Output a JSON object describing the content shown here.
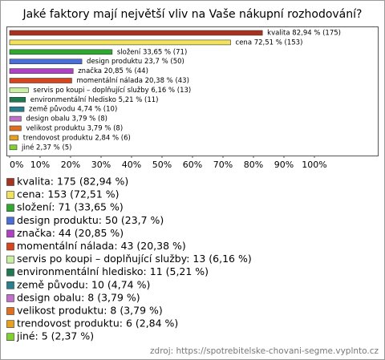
{
  "chart_data": {
    "type": "bar",
    "orientation": "horizontal",
    "title": "Jaké faktory mají největší vliv na Vaše nákupní rozhodování?",
    "categories": [
      "kvalita",
      "cena",
      "složení",
      "design produktu",
      "značka",
      "momentální nálada",
      "servis po koupi – doplňující služby",
      "environmentální hledisko",
      "země původu",
      "design obalu",
      "velikost produktu",
      "trendovost produktu",
      "jiné"
    ],
    "values": [
      82.94,
      72.51,
      33.65,
      23.7,
      20.85,
      20.38,
      6.16,
      5.21,
      4.74,
      3.79,
      3.79,
      2.84,
      2.37
    ],
    "value_labels": [
      "kvalita 82,94 % (175)",
      "cena 72,51 % (153)",
      "složení 33,65 % (71)",
      "design produktu 23,7 % (50)",
      "značka 20,85 % (44)",
      "momentální nálada 20,38 % (43)",
      "servis po koupi – doplňující služby 6,16 % (13)",
      "environmentální hledisko 5,21 % (11)",
      "země původu 4,74 % (10)",
      "design obalu 3,79 % (8)",
      "velikost produktu 3,79 % (8)",
      "trendovost produktu 2,84 % (6)",
      "jiné 2,37 % (5)"
    ],
    "legend": [
      "kvalita: 175 (82,94 %)",
      "cena: 153 (72,51 %)",
      "složení: 71 (33,65 %)",
      "design produktu: 50 (23,7 %)",
      "značka: 44 (20,85 %)",
      "momentální nálada: 43 (20,38 %)",
      "servis po koupi – doplňující služby: 13 (6,16 %)",
      "environmentální hledisko: 11 (5,21 %)",
      "země původu: 10 (4,74 %)",
      "design obalu: 8 (3,79 %)",
      "velikost produktu: 8 (3,79 %)",
      "trendovost produktu: 6 (2,84 %)",
      "jiné: 5 (2,37 %)"
    ],
    "colors": [
      "#a8321e",
      "#f2e35a",
      "#2ea82e",
      "#4a6ed8",
      "#b040c8",
      "#d8441e",
      "#c8f0a0",
      "#1e7850",
      "#2a7f8f",
      "#c070c8",
      "#e07020",
      "#e8a020",
      "#80d030"
    ],
    "xlim": [
      0,
      100
    ],
    "xticks": [
      {
        "value": 0,
        "label": "0%"
      },
      {
        "value": 10,
        "label": "10%"
      },
      {
        "value": 20,
        "label": "20%"
      },
      {
        "value": 30,
        "label": "30%"
      },
      {
        "value": 40,
        "label": "40%"
      },
      {
        "value": 50,
        "label": "50%"
      },
      {
        "value": 60,
        "label": "60%"
      },
      {
        "value": 70,
        "label": "70%"
      },
      {
        "value": 80,
        "label": "80%"
      },
      {
        "value": 90,
        "label": "90%"
      },
      {
        "value": 100,
        "label": "100%"
      }
    ],
    "source": "zdroj: https://spotrebitelske-chovani-segme.vyplnto.cz"
  }
}
